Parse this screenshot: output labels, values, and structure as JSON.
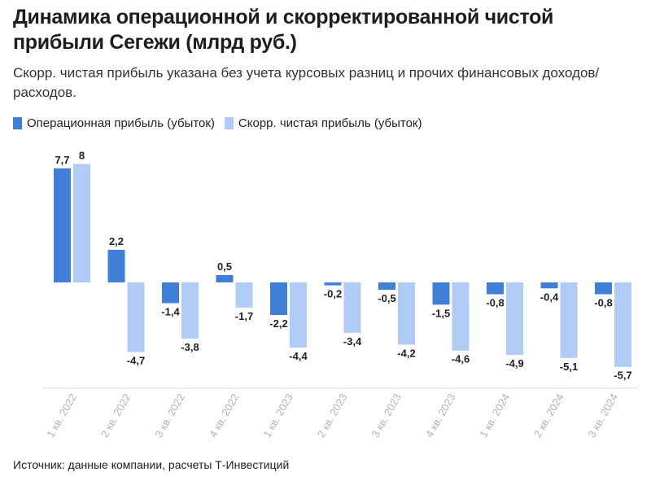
{
  "header": {
    "title": "Динамика операционной и скорректированной чистой прибыли Сегежи (млрд руб.)",
    "subtitle": "Скорр. чистая прибыль указана без учета курсовых разниц и прочих финансовых доходов/расходов."
  },
  "footer": {
    "source": "Источник: данные компании, расчеты Т-Инвестиций"
  },
  "colors": {
    "operating": "#3f7fd8",
    "adjusted": "#b1cbf7"
  },
  "chart_data": {
    "type": "bar",
    "categories": [
      "1 кв. 2022",
      "2 кв. 2022",
      "3 кв. 2022",
      "4 кв. 2022",
      "1 кв. 2023",
      "2 кв. 2023",
      "3 кв. 2023",
      "4 кв. 2023",
      "1 кв. 2024",
      "2 кв. 2024",
      "3 кв. 2024"
    ],
    "series": [
      {
        "name": "Операционная прибыль (убыток)",
        "values": [
          7.7,
          2.2,
          -1.4,
          0.5,
          -2.2,
          -0.2,
          -0.5,
          -1.5,
          -0.8,
          -0.4,
          -0.8
        ],
        "labels": [
          "7,7",
          "2,2",
          "-1,4",
          "0,5",
          "-2,2",
          "-0,2",
          "-0,5",
          "-1,5",
          "-0,8",
          "-0,4",
          "-0,8"
        ]
      },
      {
        "name": "Скорр. чистая прибыль (убыток)",
        "values": [
          8,
          -4.7,
          -3.8,
          -1.7,
          -4.4,
          -3.4,
          -4.2,
          -4.6,
          -4.9,
          -5.1,
          -5.7
        ],
        "labels": [
          "8",
          "-4,7",
          "-3,8",
          "-1,7",
          "-4,4",
          "-3,4",
          "-4,2",
          "-4,6",
          "-4,9",
          "-5,1",
          "-5,7"
        ]
      }
    ],
    "ylim": [
      -6.9,
      9
    ],
    "grid": false,
    "legend_position": "top-left"
  }
}
